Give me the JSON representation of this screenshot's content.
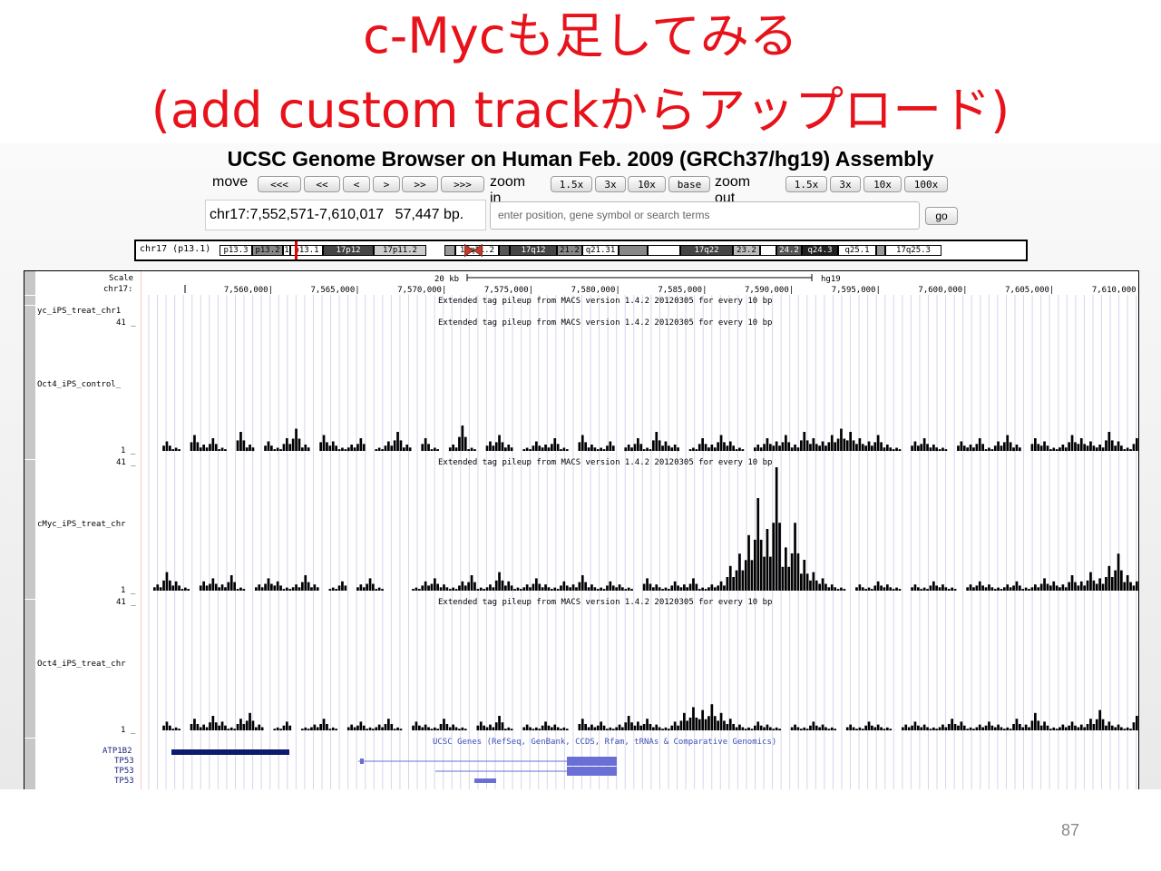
{
  "slide": {
    "title_line1": "c-Mycも足してみる",
    "title_line2": "(add custom trackからアップロード)",
    "page_number": "87",
    "title_color": "#e8121b"
  },
  "browser": {
    "title": "UCSC Genome Browser on Human Feb. 2009 (GRCh37/hg19) Assembly",
    "move_label": "move",
    "move_buttons": [
      "<<<",
      "<<",
      "<",
      ">",
      ">>",
      ">>>"
    ],
    "zoom_in_label": "zoom in",
    "zoom_in_buttons": [
      "1.5x",
      "3x",
      "10x",
      "base"
    ],
    "zoom_out_label": "zoom out",
    "zoom_out_buttons": [
      "1.5x",
      "3x",
      "10x",
      "100x"
    ],
    "position": "chr17:7,552,571-7,610,017",
    "size": "57,447 bp.",
    "search_placeholder": "enter position, gene symbol or search terms",
    "go_label": "go"
  },
  "ideogram": {
    "label": "chr17 (p13.1)",
    "bands": [
      {
        "name": "p13.3",
        "shade": "#fff"
      },
      {
        "name": "p13.2",
        "shade": "#888"
      },
      {
        "name": "1",
        "shade": "#fff"
      },
      {
        "name": "p13.1",
        "shade": "#fff"
      },
      {
        "name": "17p12",
        "shade": "#444"
      },
      {
        "name": "17p11.2",
        "shade": "#ccc"
      },
      {
        "name": "",
        "shade": "#999"
      },
      {
        "name": "17q11.2",
        "shade": "#fff"
      },
      {
        "name": "",
        "shade": "#555"
      },
      {
        "name": "17q12",
        "shade": "#444"
      },
      {
        "name": "21.2",
        "shade": "#888"
      },
      {
        "name": "q21.31",
        "shade": "#fff"
      },
      {
        "name": "",
        "shade": "#888"
      },
      {
        "name": "",
        "shade": "#fff"
      },
      {
        "name": "17q22",
        "shade": "#444"
      },
      {
        "name": "23.2",
        "shade": "#bbb"
      },
      {
        "name": "",
        "shade": "#fff"
      },
      {
        "name": "24.2",
        "shade": "#555"
      },
      {
        "name": "q24.3",
        "shade": "#222"
      },
      {
        "name": "q25.1",
        "shade": "#fff"
      },
      {
        "name": "",
        "shade": "#999"
      },
      {
        "name": "17q25.3",
        "shade": "#fff"
      }
    ]
  },
  "tracks": {
    "scale_label": "Scale",
    "chrom_label": "chr17:",
    "scale_text": "20 kb",
    "assembly": "hg19",
    "positions": [
      "7,560,000|",
      "7,565,000|",
      "7,570,000|",
      "7,575,000|",
      "7,580,000|",
      "7,585,000|",
      "7,590,000|",
      "7,595,000|",
      "7,600,000|",
      "7,605,000|",
      "7,610,000|"
    ],
    "description": "Extended tag pileup from MACS version 1.4.2 20120305 for every 10 bp",
    "track1_name": "yc_iPS_treat_chr1",
    "track_names": [
      "Oct4_iPS_control_",
      "cMyc_iPS_treat_chr",
      "Oct4_iPS_treat_chr"
    ],
    "max_label": "41 _",
    "min_label": "1 _",
    "genes_description": "UCSC Genes (RefSeq, GenBank, CCDS, Rfam, tRNAs & Comparative Genomics)",
    "gene_names": [
      "ATP1B2",
      "TP53",
      "TP53",
      "TP53"
    ],
    "coverage": {
      "oct4_control": [
        0,
        3,
        1,
        0,
        5,
        2,
        4,
        1,
        0,
        6,
        2,
        0,
        3,
        1,
        4,
        7,
        2,
        0,
        5,
        3,
        1,
        2,
        4,
        0,
        1,
        3,
        6,
        2,
        0,
        4,
        1,
        0,
        2,
        8,
        1,
        0,
        3,
        5,
        2,
        0,
        1,
        3,
        2,
        4,
        1,
        0,
        5,
        2,
        1,
        3,
        0,
        2,
        4,
        1,
        6,
        3,
        2,
        0,
        1,
        4,
        2,
        5,
        3,
        1,
        0,
        2,
        4,
        3,
        5,
        2,
        6,
        4,
        3,
        5,
        7,
        6,
        4,
        3,
        5,
        2,
        1,
        0,
        3,
        4,
        2,
        1,
        0,
        3,
        2,
        4,
        1,
        3,
        5,
        2,
        0,
        4,
        3,
        1,
        2,
        5,
        4,
        3,
        2,
        6,
        3,
        1,
        4,
        2
      ],
      "cmyc_treat": [
        2,
        6,
        3,
        1,
        0,
        3,
        4,
        2,
        5,
        1,
        0,
        2,
        4,
        3,
        1,
        2,
        5,
        2,
        0,
        1,
        3,
        0,
        2,
        4,
        1,
        0,
        0,
        0,
        1,
        3,
        4,
        2,
        1,
        3,
        5,
        1,
        2,
        6,
        3,
        1,
        2,
        4,
        2,
        1,
        3,
        2,
        5,
        2,
        1,
        3,
        2,
        1,
        0,
        4,
        2,
        1,
        3,
        2,
        4,
        1,
        2,
        3,
        8,
        12,
        18,
        30,
        20,
        40,
        14,
        22,
        10,
        6,
        4,
        2,
        1,
        0,
        2,
        1,
        3,
        2,
        1,
        0,
        2,
        1,
        3,
        2,
        1,
        0,
        2,
        3,
        2,
        1,
        2,
        3,
        1,
        2,
        4,
        3,
        2,
        5,
        3,
        6,
        4,
        8,
        12,
        5,
        3,
        2
      ],
      "oct4_treat": [
        0,
        3,
        1,
        0,
        4,
        2,
        5,
        3,
        1,
        4,
        6,
        2,
        0,
        1,
        3,
        0,
        1,
        2,
        4,
        1,
        0,
        2,
        3,
        1,
        2,
        4,
        1,
        0,
        3,
        2,
        1,
        4,
        2,
        1,
        0,
        3,
        2,
        5,
        1,
        0,
        2,
        1,
        3,
        2,
        1,
        0,
        4,
        2,
        3,
        1,
        2,
        5,
        3,
        4,
        2,
        1,
        3,
        6,
        8,
        7,
        9,
        6,
        4,
        2,
        1,
        3,
        2,
        1,
        0,
        2,
        1,
        3,
        2,
        1,
        0,
        2,
        1,
        3,
        2,
        1,
        0,
        2,
        3,
        2,
        1,
        2,
        4,
        3,
        1,
        2,
        3,
        2,
        1,
        4,
        2,
        6,
        3,
        1,
        2,
        3,
        2,
        4,
        7,
        3,
        2,
        1,
        5,
        2
      ]
    }
  }
}
